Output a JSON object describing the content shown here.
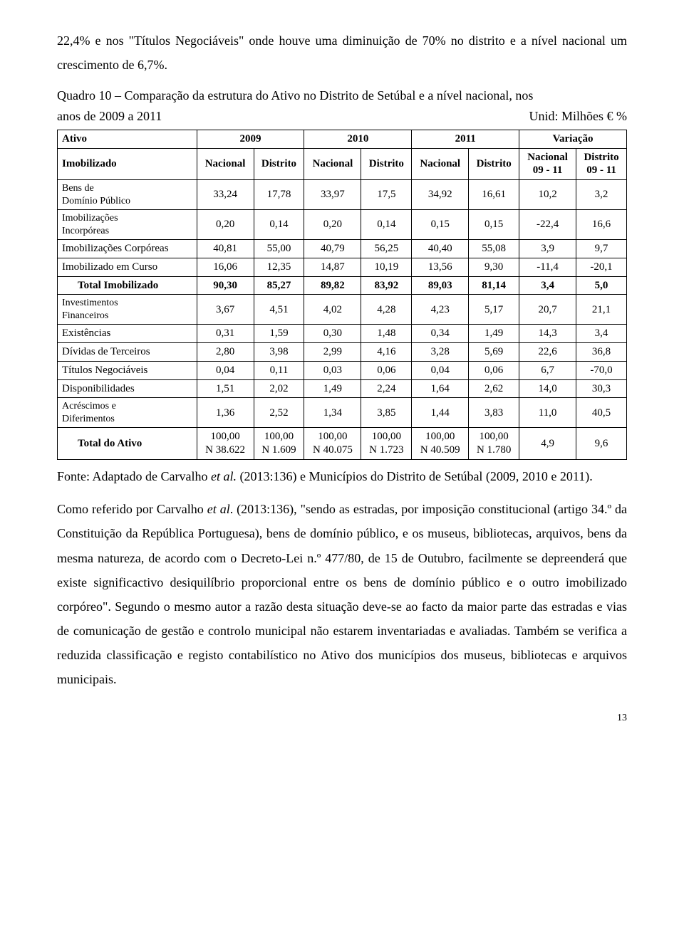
{
  "intro_para": "22,4% e nos \"Títulos Negociáveis\" onde houve uma diminuição de 70% no distrito e a nível nacional um crescimento de 6,7%.",
  "table": {
    "caption_line1": "Quadro 10 – Comparação da estrutura do Ativo no Distrito de Setúbal e a nível nacional, nos",
    "caption_line2_left": "anos de 2009 a 2011",
    "caption_line2_right": "Unid: Milhões € %",
    "header": {
      "ativo": "Ativo",
      "years": [
        "2009",
        "2010",
        "2011"
      ],
      "variacao": "Variação",
      "imobilizado": "Imobilizado",
      "nacional": "Nacional",
      "distrito": "Distrito",
      "nacional_0911": "Nacional\n09 - 11",
      "distrito_0911": "Distrito\n09 - 11"
    },
    "rows": [
      {
        "label": "Bens de Domínio Público",
        "vals": [
          "33,24",
          "17,78",
          "33,97",
          "17,5",
          "34,92",
          "16,61",
          "10,2",
          "3,2"
        ],
        "bold": false,
        "indent": false,
        "multiline": true
      },
      {
        "label": "Imobilizações Incorpóreas",
        "vals": [
          "0,20",
          "0,14",
          "0,20",
          "0,14",
          "0,15",
          "0,15",
          "-22,4",
          "16,6"
        ],
        "bold": false,
        "indent": false,
        "multiline": true
      },
      {
        "label": "Imobilizações Corpóreas",
        "vals": [
          "40,81",
          "55,00",
          "40,79",
          "56,25",
          "40,40",
          "55,08",
          "3,9",
          "9,7"
        ],
        "bold": false,
        "indent": false
      },
      {
        "label": "Imobilizado em Curso",
        "vals": [
          "16,06",
          "12,35",
          "14,87",
          "10,19",
          "13,56",
          "9,30",
          "-11,4",
          "-20,1"
        ],
        "bold": false,
        "indent": false
      },
      {
        "label": "Total Imobilizado",
        "vals": [
          "90,30",
          "85,27",
          "89,82",
          "83,92",
          "89,03",
          "81,14",
          "3,4",
          "5,0"
        ],
        "bold": true,
        "indent": true
      },
      {
        "label": "Investimentos Financeiros",
        "vals": [
          "3,67",
          "4,51",
          "4,02",
          "4,28",
          "4,23",
          "5,17",
          "20,7",
          "21,1"
        ],
        "bold": false,
        "indent": false,
        "multiline": true
      },
      {
        "label": "Existências",
        "vals": [
          "0,31",
          "1,59",
          "0,30",
          "1,48",
          "0,34",
          "1,49",
          "14,3",
          "3,4"
        ],
        "bold": false,
        "indent": false
      },
      {
        "label": "Dívidas de Terceiros",
        "vals": [
          "2,80",
          "3,98",
          "2,99",
          "4,16",
          "3,28",
          "5,69",
          "22,6",
          "36,8"
        ],
        "bold": false,
        "indent": false
      },
      {
        "label": "Títulos Negociáveis",
        "vals": [
          "0,04",
          "0,11",
          "0,03",
          "0,06",
          "0,04",
          "0,06",
          "6,7",
          "-70,0"
        ],
        "bold": false,
        "indent": false
      },
      {
        "label": "Disponibilidades",
        "vals": [
          "1,51",
          "2,02",
          "1,49",
          "2,24",
          "1,64",
          "2,62",
          "14,0",
          "30,3"
        ],
        "bold": false,
        "indent": false
      },
      {
        "label": "Acréscimos e Diferimentos",
        "vals": [
          "1,36",
          "2,52",
          "1,34",
          "3,85",
          "1,44",
          "3,83",
          "11,0",
          "40,5"
        ],
        "bold": false,
        "indent": false,
        "multiline": true
      }
    ],
    "total_row": {
      "label": "Total do Ativo",
      "cells": [
        {
          "top": "100,00",
          "bot": "N 38.622"
        },
        {
          "top": "100,00",
          "bot": "N 1.609"
        },
        {
          "top": "100,00",
          "bot": "N 40.075"
        },
        {
          "top": "100,00",
          "bot": "N 1.723"
        },
        {
          "top": "100,00",
          "bot": "N 40.509"
        },
        {
          "top": "100,00",
          "bot": "N 1.780"
        }
      ],
      "var1": "4,9",
      "var2": "9,6"
    }
  },
  "fonte_prefix": "Fonte: Adaptado de Carvalho ",
  "fonte_italic": "et al.",
  "fonte_rest": " (2013:136) e Municípios do Distrito de Setúbal (2009, 2010 e 2011).",
  "body_para_prefix": "Como referido por Carvalho ",
  "body_para_italic": "et al",
  "body_para_rest": ". (2013:136), \"sendo as estradas, por imposição constitucional (artigo 34.º da Constituição da República Portuguesa), bens de domínio público, e os museus, bibliotecas, arquivos, bens da mesma natureza, de acordo com o Decreto-Lei n.º 477/80, de 15 de Outubro, facilmente se depreenderá que existe significactivo desiquilíbrio proporcional entre os bens de domínio público e o outro imobilizado corpóreo\". Segundo o mesmo autor a razão desta situação deve-se ao facto da maior parte das estradas e vias de comunicação de gestão e controlo municipal não estarem inventariadas e avaliadas. Também se verifica a reduzida classificação e registo contabilístico no Ativo dos municípios dos museus, bibliotecas e arquivos municipais.",
  "page_number": "13"
}
